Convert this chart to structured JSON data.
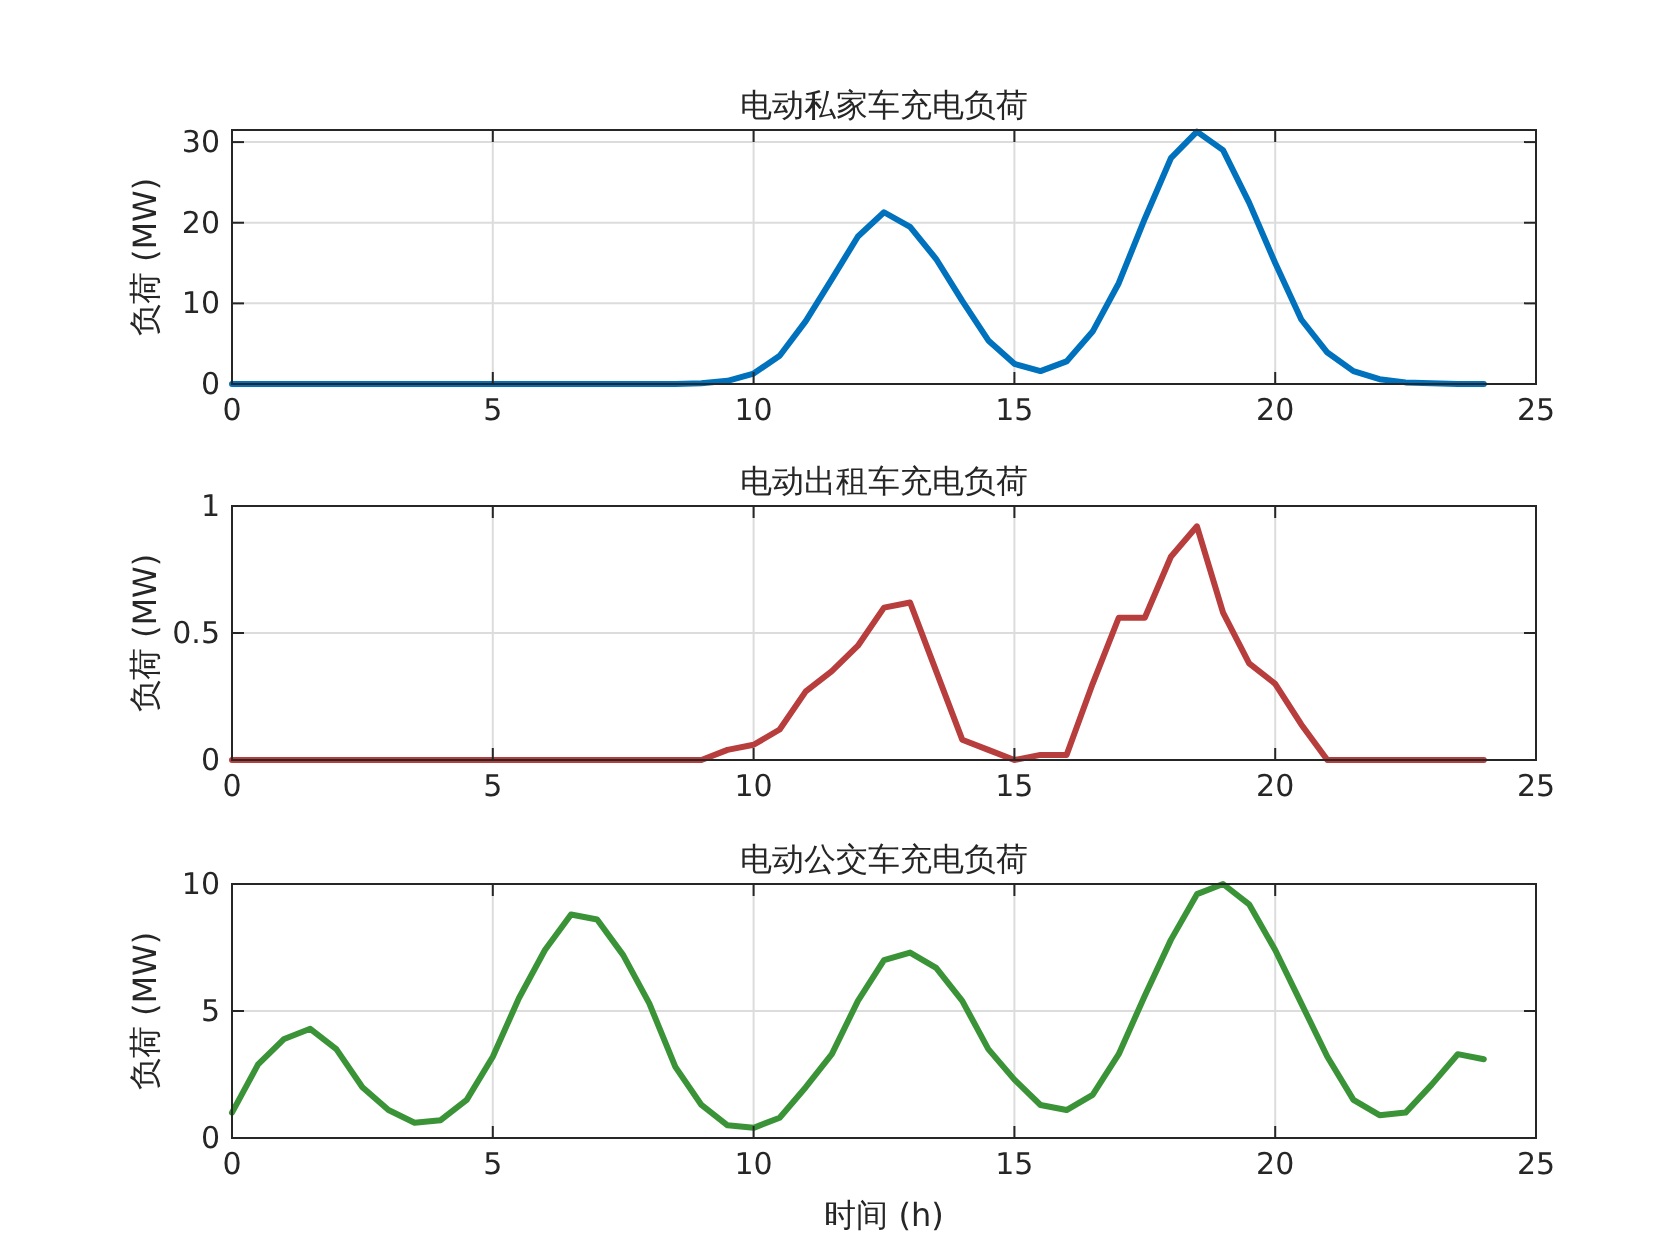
{
  "chart_data": [
    {
      "type": "line",
      "title": "电动私家车充电负荷",
      "ylabel": "负荷 (MW)",
      "x": [
        0,
        0.5,
        1,
        1.5,
        2,
        2.5,
        3,
        3.5,
        4,
        4.5,
        5,
        5.5,
        6,
        6.5,
        7,
        7.5,
        8,
        8.5,
        9,
        9.5,
        10,
        10.5,
        11,
        11.5,
        12,
        12.5,
        13,
        13.5,
        14,
        14.5,
        15,
        15.5,
        16,
        16.5,
        17,
        17.5,
        18,
        18.5,
        19,
        19.5,
        20,
        20.5,
        21,
        21.5,
        22,
        22.5,
        23,
        23.5,
        24
      ],
      "series": [
        {
          "color": "#0072bd",
          "values": [
            0,
            0,
            0,
            0,
            0,
            0,
            0,
            0,
            0,
            0,
            0,
            0,
            0,
            0,
            0,
            0,
            0,
            0,
            0.1,
            0.4,
            1.3,
            3.5,
            7.8,
            13,
            18.3,
            21.3,
            19.5,
            15.5,
            10.3,
            5.4,
            2.5,
            1.6,
            2.8,
            6.5,
            12.5,
            20.5,
            28,
            31.3,
            29,
            22.5,
            15,
            8,
            3.9,
            1.6,
            0.6,
            0.2,
            0.1,
            0,
            0
          ]
        }
      ],
      "xlim": [
        0,
        25
      ],
      "xticks": [
        0,
        5,
        10,
        15,
        20,
        25
      ],
      "ylim": [
        0,
        31.5
      ],
      "yticks": [
        0,
        10,
        20,
        30
      ],
      "grid": true,
      "line_style": "solid",
      "marker": "none"
    },
    {
      "type": "line",
      "title": "电动出租车充电负荷",
      "ylabel": "负荷 (MW)",
      "x": [
        0,
        0.5,
        1,
        1.5,
        2,
        2.5,
        3,
        3.5,
        4,
        4.5,
        5,
        5.5,
        6,
        6.5,
        7,
        7.5,
        8,
        8.5,
        9,
        9.5,
        10,
        10.5,
        11,
        11.5,
        12,
        12.5,
        13,
        13.5,
        14,
        14.5,
        15,
        15.5,
        16,
        16.5,
        17,
        17.5,
        18,
        18.5,
        19,
        19.5,
        20,
        20.5,
        21,
        21.5,
        22,
        22.5,
        23,
        23.5,
        24
      ],
      "series": [
        {
          "color": "#b83d3d",
          "values": [
            0,
            0,
            0,
            0,
            0,
            0,
            0,
            0,
            0,
            0,
            0,
            0,
            0,
            0,
            0,
            0,
            0,
            0,
            0,
            0.04,
            0.06,
            0.12,
            0.27,
            0.35,
            0.45,
            0.6,
            0.62,
            0.35,
            0.08,
            0.04,
            0,
            0.02,
            0.02,
            0.3,
            0.56,
            0.56,
            0.8,
            0.92,
            0.58,
            0.38,
            0.3,
            0.14,
            0,
            0,
            0,
            0,
            0,
            0,
            0
          ]
        }
      ],
      "xlim": [
        0,
        25
      ],
      "xticks": [
        0,
        5,
        10,
        15,
        20,
        25
      ],
      "ylim": [
        0,
        1
      ],
      "yticks": [
        0,
        0.5,
        1
      ],
      "grid": true,
      "line_style": "solid",
      "marker": "none"
    },
    {
      "type": "line",
      "title": "电动公交车充电负荷",
      "xlabel": "时间 (h)",
      "ylabel": "负荷 (MW)",
      "x": [
        0,
        0.5,
        1,
        1.5,
        2,
        2.5,
        3,
        3.5,
        4,
        4.5,
        5,
        5.5,
        6,
        6.5,
        7,
        7.5,
        8,
        8.5,
        9,
        9.5,
        10,
        10.5,
        11,
        11.5,
        12,
        12.5,
        13,
        13.5,
        14,
        14.5,
        15,
        15.5,
        16,
        16.5,
        17,
        17.5,
        18,
        18.5,
        19,
        19.5,
        20,
        20.5,
        21,
        21.5,
        22,
        22.5,
        23,
        23.5,
        24
      ],
      "series": [
        {
          "color": "#3a9437",
          "values": [
            1.0,
            2.9,
            3.9,
            4.3,
            3.5,
            2.0,
            1.1,
            0.6,
            0.7,
            1.5,
            3.2,
            5.5,
            7.4,
            8.8,
            8.6,
            7.2,
            5.3,
            2.8,
            1.3,
            0.5,
            0.4,
            0.8,
            2.0,
            3.3,
            5.4,
            7.0,
            7.3,
            6.7,
            5.4,
            3.5,
            2.3,
            1.3,
            1.1,
            1.7,
            3.3,
            5.6,
            7.8,
            9.6,
            10,
            9.2,
            7.4,
            5.3,
            3.2,
            1.5,
            0.9,
            1.0,
            2.1,
            3.3,
            3.1
          ]
        }
      ],
      "xlim": [
        0,
        25
      ],
      "xticks": [
        0,
        5,
        10,
        15,
        20,
        25
      ],
      "ylim": [
        0,
        10
      ],
      "yticks": [
        0,
        5,
        10
      ],
      "grid": true,
      "line_style": "solid",
      "marker": "none"
    }
  ]
}
